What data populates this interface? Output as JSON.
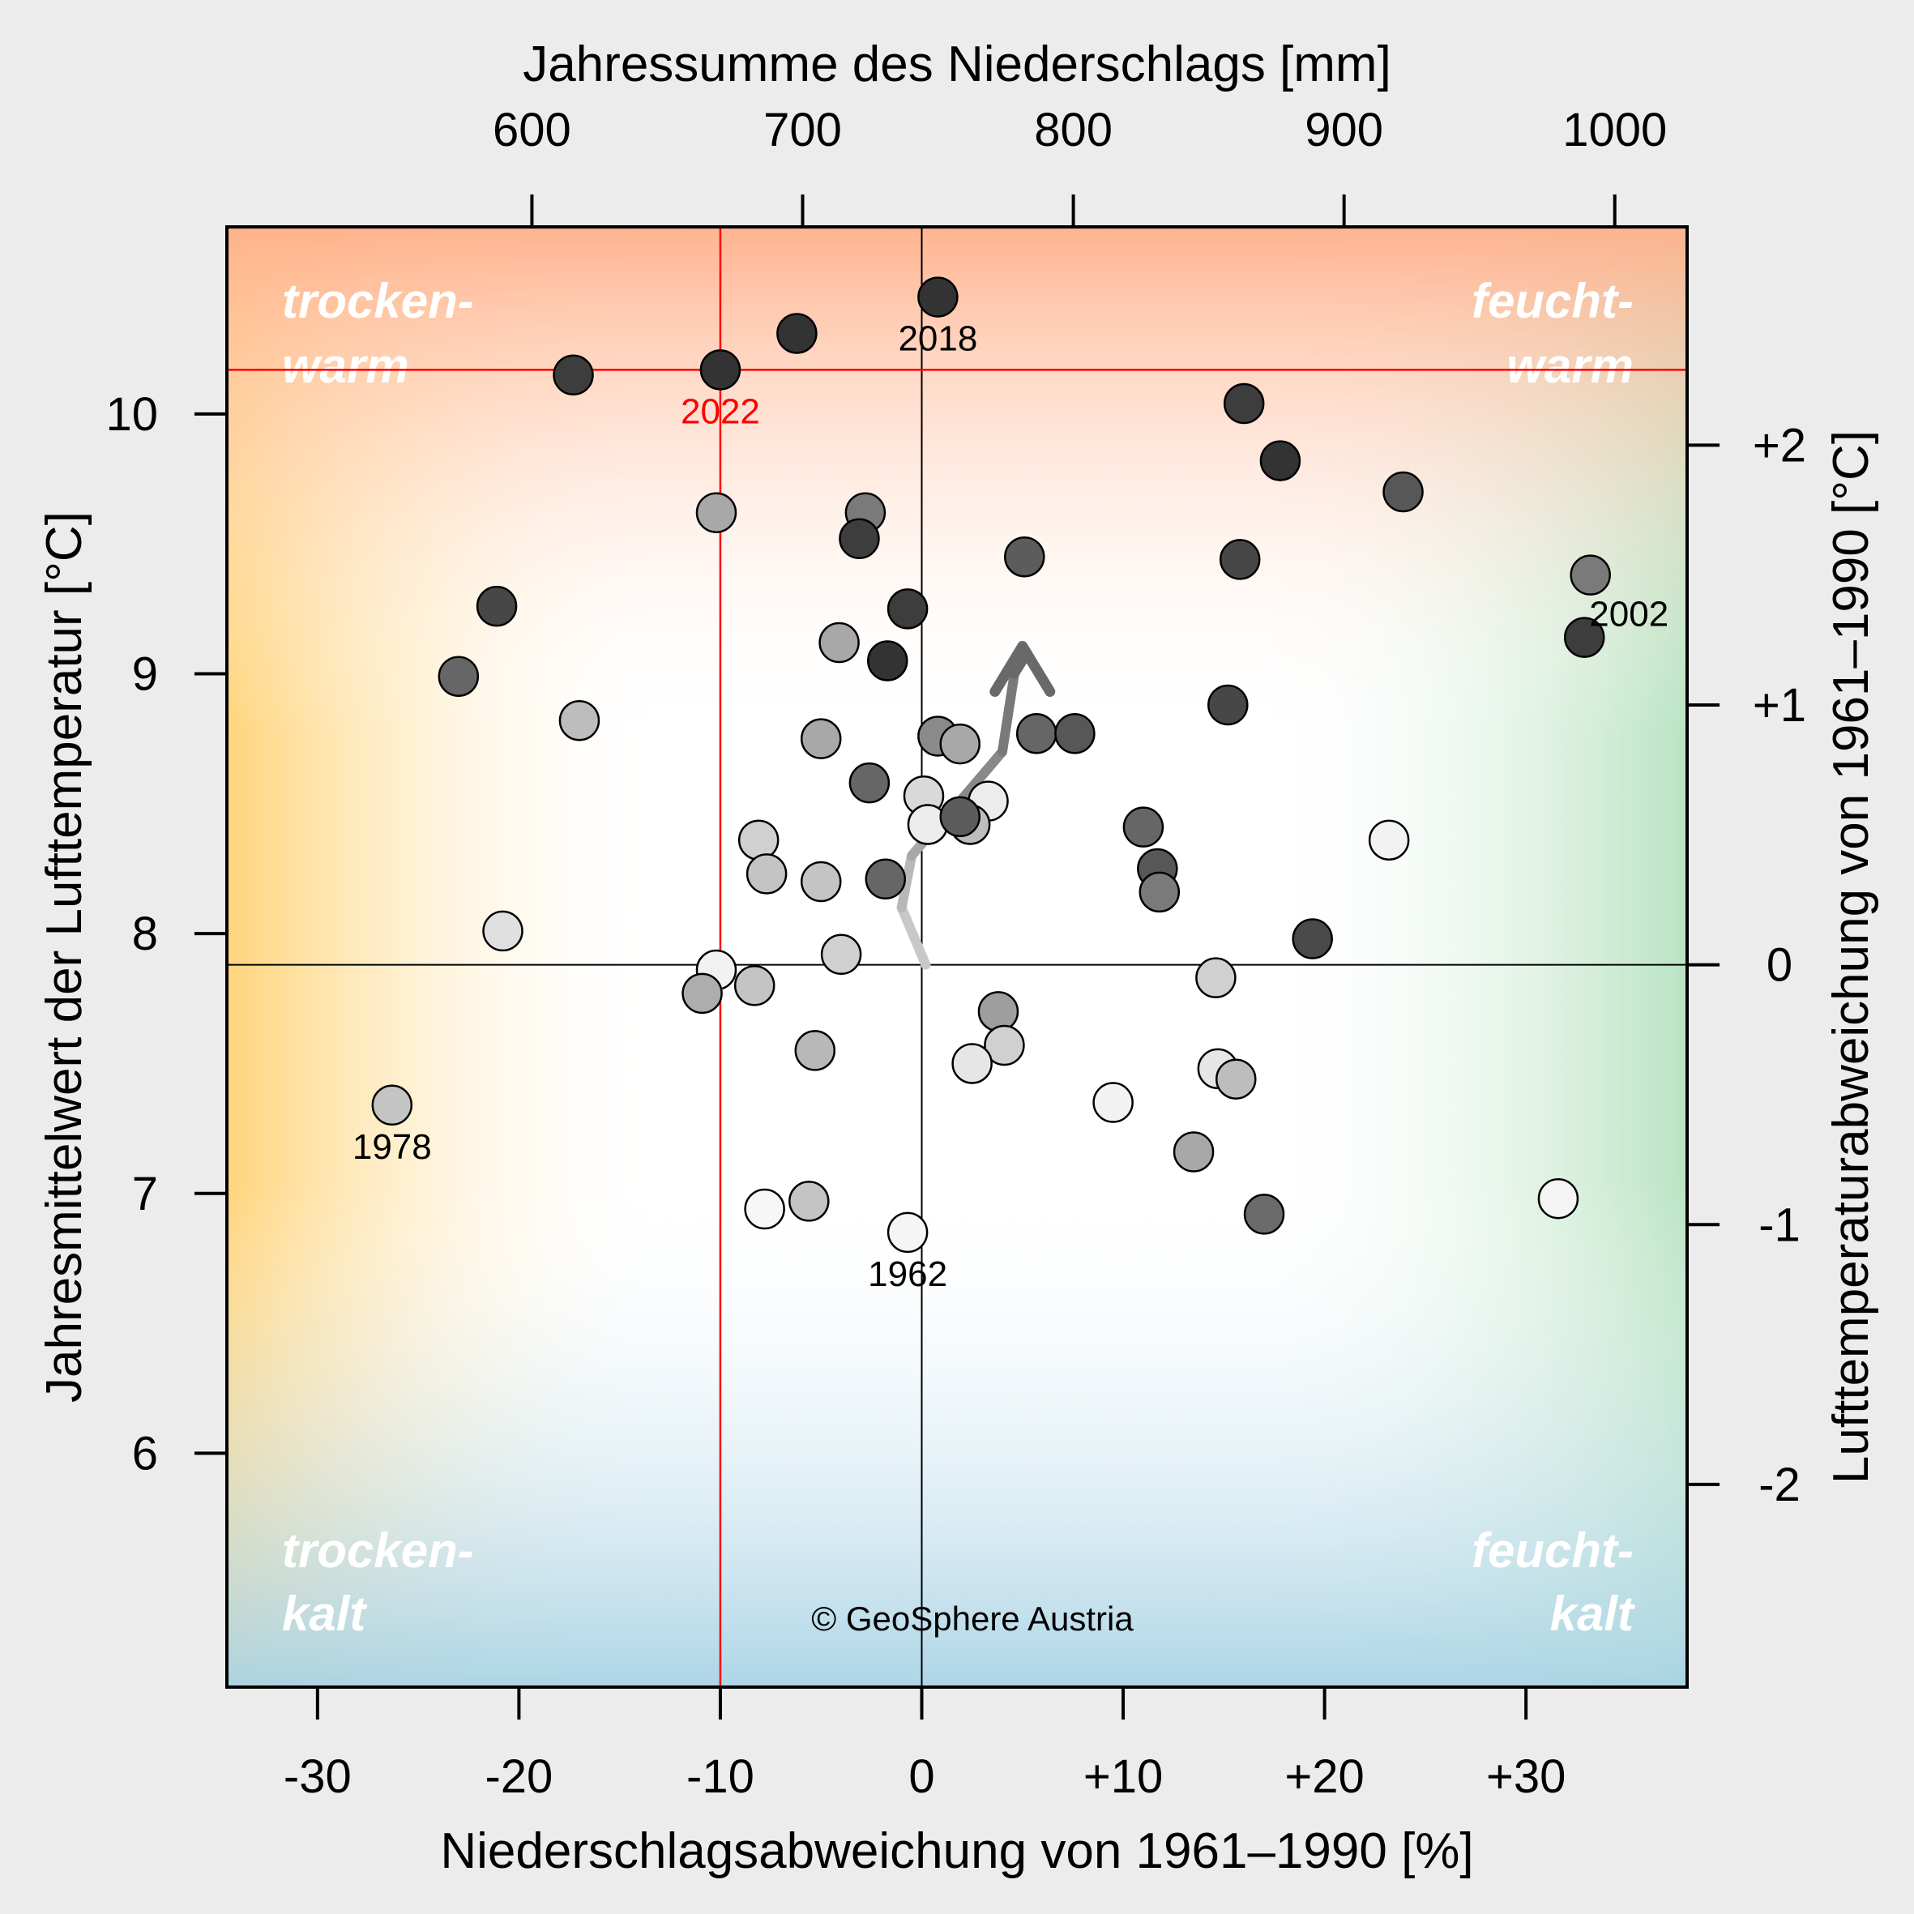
{
  "chart_data": {
    "type": "scatter",
    "title_top_axis": "Jahressumme des Niederschlags [mm]",
    "xlabel": "Niederschlagsabweichung von 1961–1990 [%]",
    "ylabel": "Jahresmittelwert der Lufttemperatur [°C]",
    "ylabel_right": "Lufttemperaturabweichung von 1961–1990 [°C]",
    "x_axis": {
      "range": [
        -34.5,
        38
      ],
      "ticks": [
        -30,
        -20,
        -10,
        0,
        10,
        20,
        30
      ],
      "tick_labels": [
        "-30",
        "-20",
        "-10",
        "0",
        "+10",
        "+20",
        "+30"
      ]
    },
    "y_axis": {
      "range": [
        5.1,
        10.72
      ],
      "ticks": [
        6,
        7,
        8,
        9,
        10
      ],
      "tick_labels": [
        "6",
        "7",
        "8",
        "9",
        "10"
      ]
    },
    "top_axis": {
      "baseline_mm": 744,
      "ticks": [
        600,
        700,
        800,
        900,
        1000
      ],
      "tick_labels": [
        "600",
        "700",
        "800",
        "900",
        "1000"
      ]
    },
    "right_axis": {
      "baseline_temp": 7.88,
      "ticks": [
        -2,
        -1,
        0,
        1,
        2
      ],
      "tick_labels": [
        "-2",
        "-1",
        "0",
        "+1",
        "+2"
      ]
    },
    "reference_lines": {
      "x": 0,
      "y": 7.88
    },
    "highlight": {
      "label": "2022",
      "x": -10,
      "y": 10.17,
      "color": "#ff0000"
    },
    "quadrant_labels": {
      "top_left": [
        "trocken-",
        "warm"
      ],
      "top_right": [
        "feucht-",
        "warm"
      ],
      "bottom_left": [
        "trocken-",
        "kalt"
      ],
      "bottom_right": [
        "feucht-",
        "kalt"
      ]
    },
    "copyright": "© GeoSphere Austria",
    "trend_arrow": [
      [
        0.2,
        7.88
      ],
      [
        -1.0,
        8.1
      ],
      [
        -0.5,
        8.3
      ],
      [
        0.6,
        8.4
      ],
      [
        1.8,
        8.5
      ],
      [
        4.0,
        8.7
      ],
      [
        4.6,
        9.0
      ],
      [
        5.0,
        9.05
      ]
    ],
    "labeled_points": [
      {
        "label": "2018",
        "x": 0.8,
        "y": 10.45
      },
      {
        "label": "2002",
        "x": 32.9,
        "y": 9.14
      },
      {
        "label": "1978",
        "x": -26.3,
        "y": 7.34
      },
      {
        "label": "1962",
        "x": -0.7,
        "y": 6.85
      }
    ],
    "points": [
      {
        "x": 0.8,
        "y": 10.45,
        "g": "#333333"
      },
      {
        "x": -6.2,
        "y": 10.31,
        "g": "#333333"
      },
      {
        "x": -17.3,
        "y": 10.15,
        "g": "#3d3d3d"
      },
      {
        "x": 16.0,
        "y": 10.04,
        "g": "#3d3d3d"
      },
      {
        "x": 17.8,
        "y": 9.82,
        "g": "#333333"
      },
      {
        "x": 23.9,
        "y": 9.7,
        "g": "#575757"
      },
      {
        "x": -10.2,
        "y": 9.62,
        "g": "#a8a8a8"
      },
      {
        "x": -2.8,
        "y": 9.62,
        "g": "#7a7a7a"
      },
      {
        "x": -3.1,
        "y": 9.52,
        "g": "#3d3d3d"
      },
      {
        "x": 5.1,
        "y": 9.45,
        "g": "#5c5c5c"
      },
      {
        "x": 15.8,
        "y": 9.44,
        "g": "#474747"
      },
      {
        "x": 33.2,
        "y": 9.38,
        "g": "#7a7a7a"
      },
      {
        "x": 32.9,
        "y": 9.14,
        "g": "#3d3d3d"
      },
      {
        "x": -21.1,
        "y": 9.26,
        "g": "#474747"
      },
      {
        "x": -0.7,
        "y": 9.25,
        "g": "#3d3d3d"
      },
      {
        "x": -4.1,
        "y": 9.12,
        "g": "#a8a8a8"
      },
      {
        "x": -1.7,
        "y": 9.05,
        "g": "#333333"
      },
      {
        "x": -23.0,
        "y": 8.99,
        "g": "#666666"
      },
      {
        "x": 15.2,
        "y": 8.88,
        "g": "#474747"
      },
      {
        "x": -17.0,
        "y": 8.82,
        "g": "#bdbdbd"
      },
      {
        "x": 5.7,
        "y": 8.77,
        "g": "#666666"
      },
      {
        "x": 7.6,
        "y": 8.77,
        "g": "#575757"
      },
      {
        "x": 0.8,
        "y": 8.76,
        "g": "#8a8a8a"
      },
      {
        "x": 1.9,
        "y": 8.73,
        "g": "#a8a8a8"
      },
      {
        "x": -5.0,
        "y": 8.75,
        "g": "#a8a8a8"
      },
      {
        "x": -2.6,
        "y": 8.58,
        "g": "#666666"
      },
      {
        "x": 0.1,
        "y": 8.53,
        "g": "#d9d9d9"
      },
      {
        "x": 3.3,
        "y": 8.51,
        "g": "#ececec"
      },
      {
        "x": 2.4,
        "y": 8.42,
        "g": "#bdbdbd"
      },
      {
        "x": 0.3,
        "y": 8.42,
        "g": "#ececec"
      },
      {
        "x": 1.9,
        "y": 8.45,
        "g": "#5c5c5c"
      },
      {
        "x": 11.0,
        "y": 8.41,
        "g": "#666666"
      },
      {
        "x": 23.2,
        "y": 8.36,
        "g": "#f2f2f2"
      },
      {
        "x": -8.1,
        "y": 8.36,
        "g": "#d0d0d0"
      },
      {
        "x": -7.7,
        "y": 8.23,
        "g": "#c4c4c4"
      },
      {
        "x": -5.0,
        "y": 8.2,
        "g": "#c4c4c4"
      },
      {
        "x": -1.8,
        "y": 8.21,
        "g": "#666666"
      },
      {
        "x": 11.7,
        "y": 8.25,
        "g": "#575757"
      },
      {
        "x": 11.8,
        "y": 8.16,
        "g": "#7a7a7a"
      },
      {
        "x": 19.4,
        "y": 7.98,
        "g": "#4a4a4a"
      },
      {
        "x": -20.8,
        "y": 8.01,
        "g": "#e0e0e0"
      },
      {
        "x": -4.0,
        "y": 7.92,
        "g": "#d0d0d0"
      },
      {
        "x": -10.2,
        "y": 7.86,
        "g": "#f2f2f2"
      },
      {
        "x": -8.3,
        "y": 7.8,
        "g": "#c4c4c4"
      },
      {
        "x": -10.9,
        "y": 7.77,
        "g": "#adadad"
      },
      {
        "x": 14.6,
        "y": 7.83,
        "g": "#d0d0d0"
      },
      {
        "x": 3.8,
        "y": 7.7,
        "g": "#9e9e9e"
      },
      {
        "x": 4.1,
        "y": 7.57,
        "g": "#d0d0d0"
      },
      {
        "x": -5.3,
        "y": 7.55,
        "g": "#b8b8b8"
      },
      {
        "x": 2.5,
        "y": 7.5,
        "g": "#e6e6e6"
      },
      {
        "x": 14.7,
        "y": 7.48,
        "g": "#e6e6e6"
      },
      {
        "x": 15.6,
        "y": 7.44,
        "g": "#bdbdbd"
      },
      {
        "x": -26.3,
        "y": 7.34,
        "g": "#c4c4c4"
      },
      {
        "x": 9.5,
        "y": 7.35,
        "g": "#f2f2f2"
      },
      {
        "x": 13.5,
        "y": 7.16,
        "g": "#a8a8a8"
      },
      {
        "x": 31.6,
        "y": 6.98,
        "g": "#f5f5f5"
      },
      {
        "x": -5.6,
        "y": 6.97,
        "g": "#c4c4c4"
      },
      {
        "x": -7.8,
        "y": 6.94,
        "g": "#f7f7f7"
      },
      {
        "x": 17.0,
        "y": 6.92,
        "g": "#6b6b6b"
      },
      {
        "x": -0.7,
        "y": 6.85,
        "g": "#f5f5f5"
      },
      {
        "x": -10.0,
        "y": 10.17,
        "g": "#333333"
      }
    ]
  }
}
